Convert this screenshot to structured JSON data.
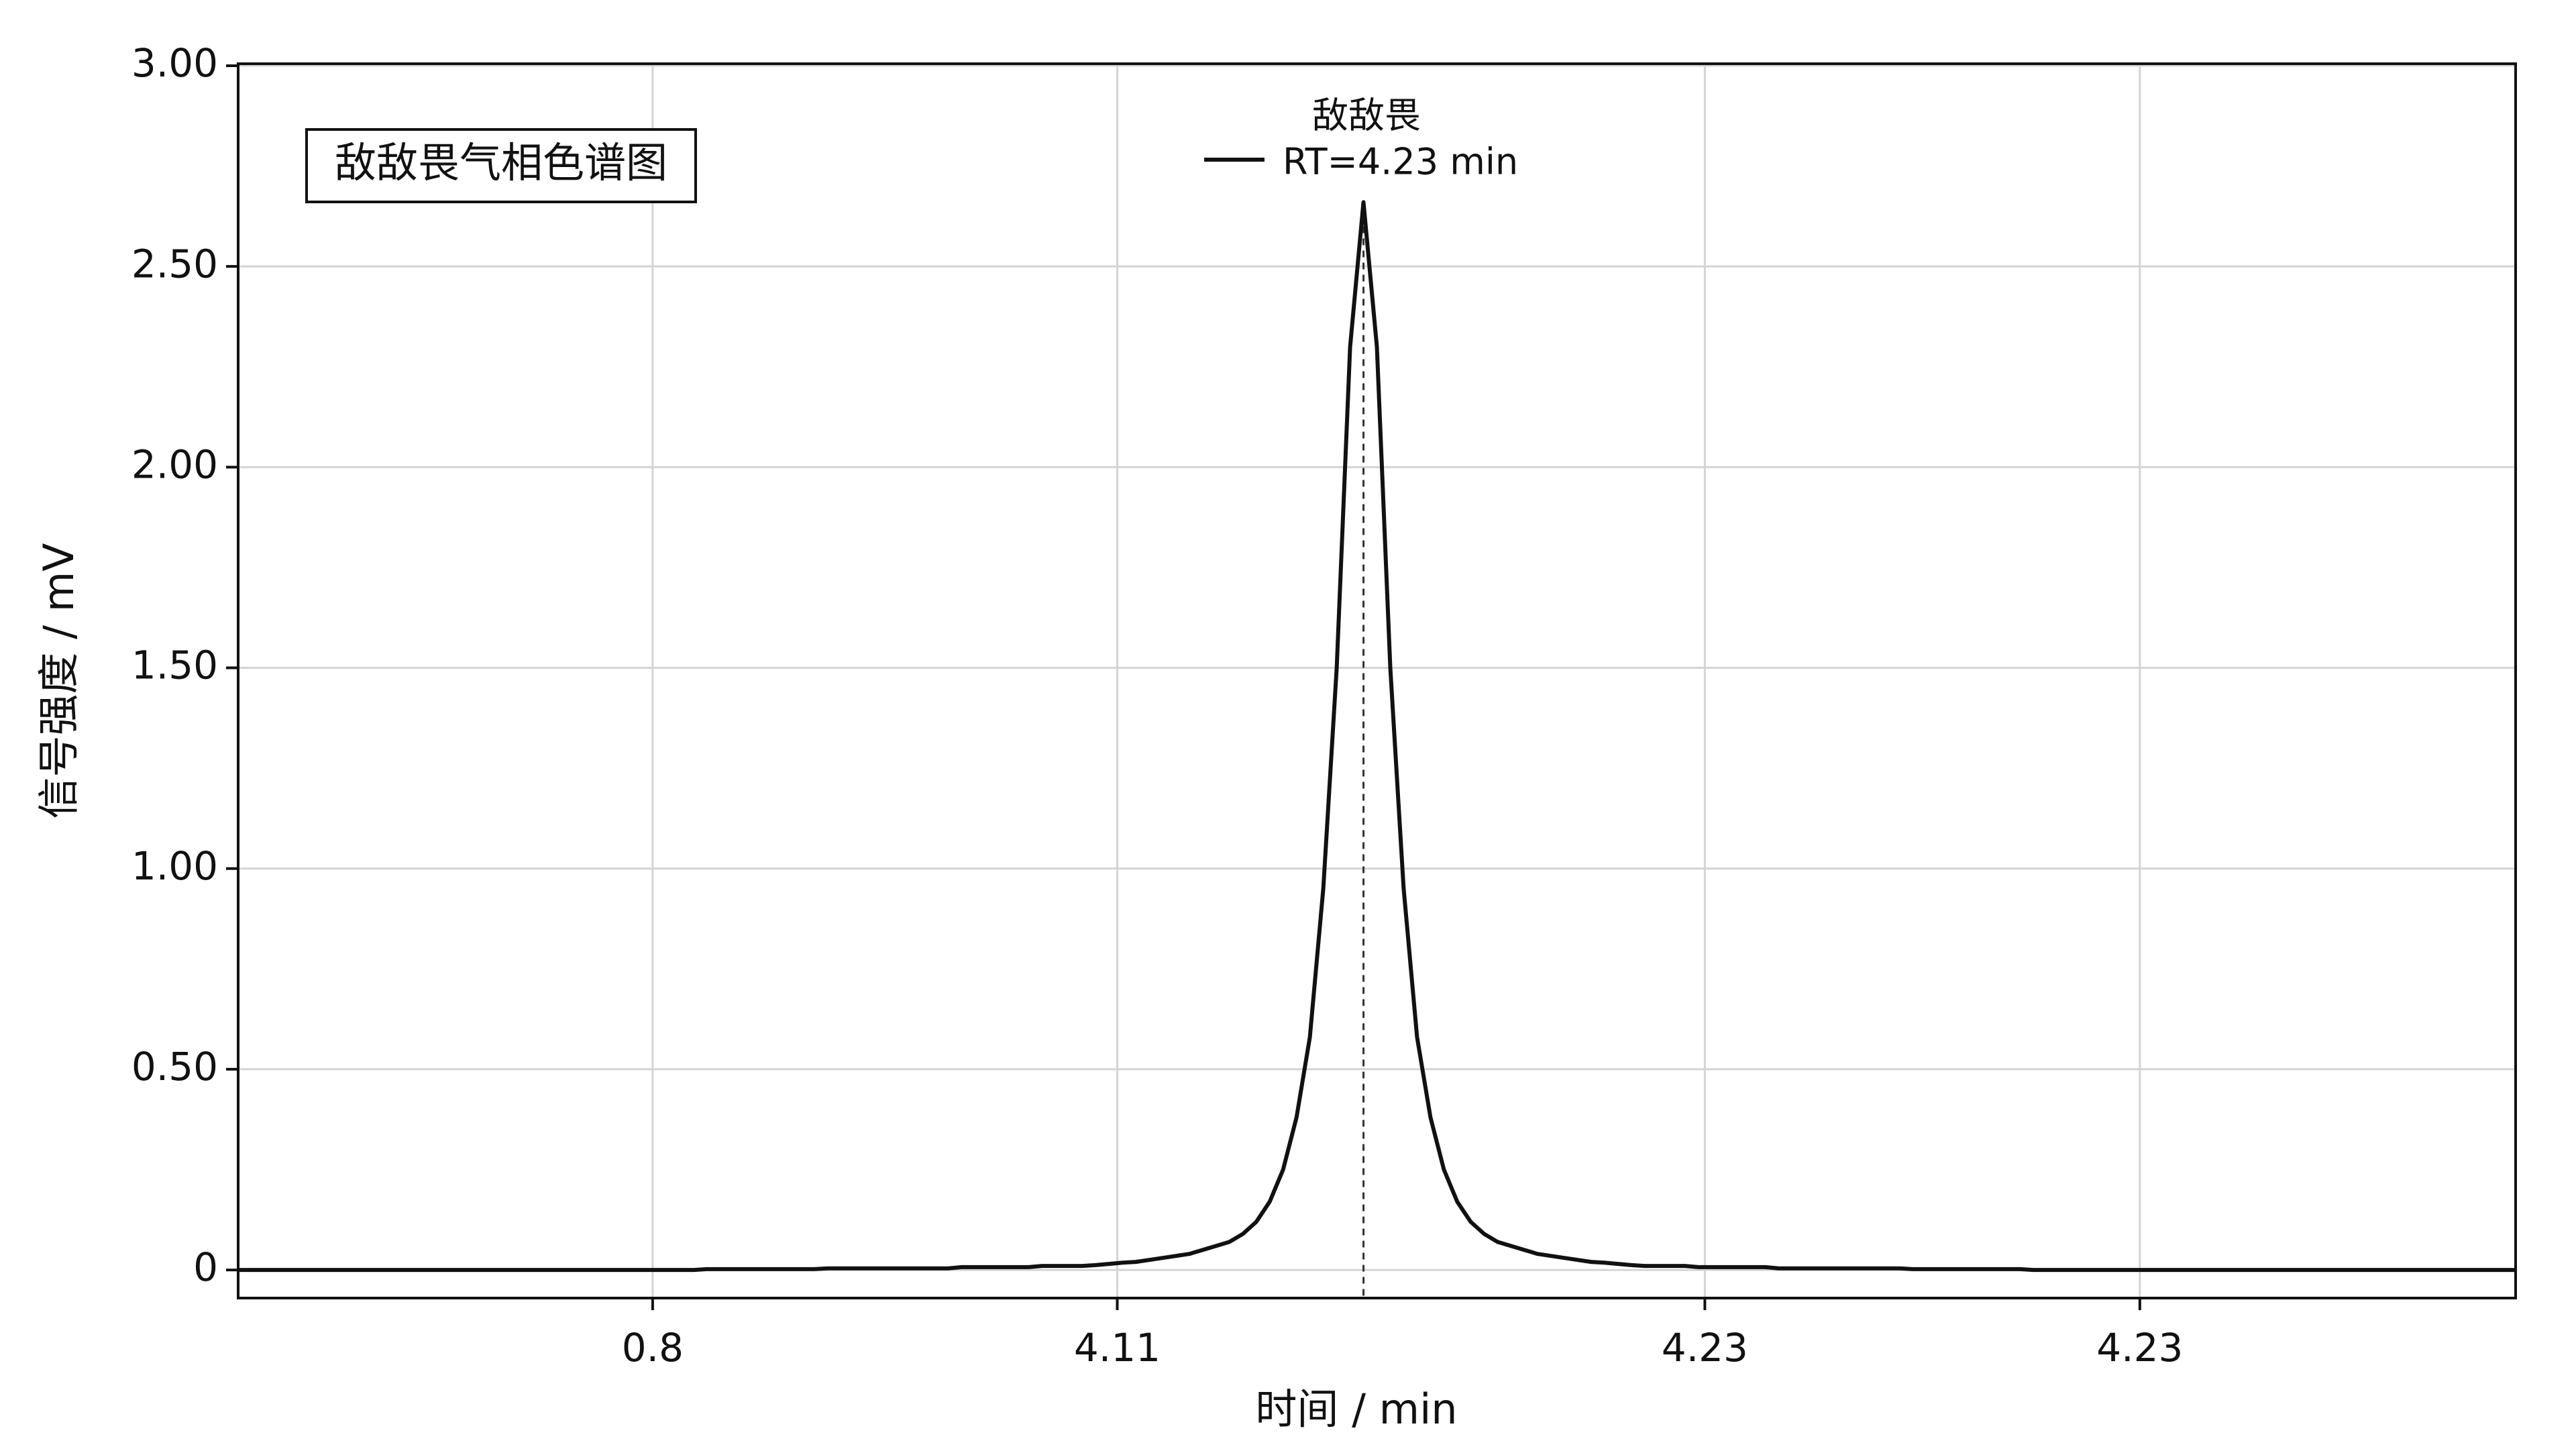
{
  "chart_data": {
    "type": "line",
    "title": "敌敌畏气相色谱图",
    "xlabel": "时间 / min",
    "ylabel": "信号强度 / mV",
    "legend_title": "敌敌畏",
    "legend": "top-center",
    "grid": true,
    "xtick_labels": [
      "0.8",
      "4.11",
      "4.23",
      "4.23"
    ],
    "ylim": [
      -0.07,
      3.0
    ],
    "yticks": [
      0,
      {
        "value": 0.5,
        "label": "0.50"
      },
      {
        "value": 1.0,
        "label": "1.00"
      },
      {
        "value": 1.5,
        "label": "1.50"
      },
      {
        "value": 2.0,
        "label": "2.00"
      },
      {
        "value": 2.5,
        "label": "2.50"
      },
      {
        "value": 3.0,
        "label": "3.00"
      }
    ],
    "series": [
      {
        "name": "RT=4.23 min",
        "color": "#111111",
        "values": [
          0,
          0,
          0,
          0,
          0,
          0,
          0,
          0,
          0,
          0,
          0,
          0,
          0,
          0,
          0,
          0,
          0,
          0,
          0,
          0,
          0,
          0,
          0,
          0,
          0,
          0,
          0,
          0,
          0,
          0,
          0,
          0,
          0,
          0,
          0,
          0.002,
          0.002,
          0.002,
          0.002,
          0.002,
          0.002,
          0.002,
          0.002,
          0.002,
          0.004,
          0.004,
          0.004,
          0.004,
          0.004,
          0.004,
          0.004,
          0.004,
          0.004,
          0.004,
          0.007,
          0.007,
          0.007,
          0.007,
          0.007,
          0.007,
          0.01,
          0.01,
          0.01,
          0.01,
          0.012,
          0.015,
          0.018,
          0.02,
          0.025,
          0.03,
          0.035,
          0.04,
          0.05,
          0.06,
          0.07,
          0.09,
          0.12,
          0.17,
          0.25,
          0.38,
          0.58,
          0.95,
          1.5,
          2.3,
          2.66,
          2.3,
          1.5,
          0.95,
          0.58,
          0.38,
          0.25,
          0.17,
          0.12,
          0.09,
          0.07,
          0.06,
          0.05,
          0.04,
          0.035,
          0.03,
          0.025,
          0.02,
          0.018,
          0.015,
          0.012,
          0.01,
          0.01,
          0.01,
          0.01,
          0.007,
          0.007,
          0.007,
          0.007,
          0.007,
          0.007,
          0.004,
          0.004,
          0.004,
          0.004,
          0.004,
          0.004,
          0.004,
          0.004,
          0.004,
          0.004,
          0.002,
          0.002,
          0.002,
          0.002,
          0.002,
          0.002,
          0.002,
          0.002,
          0.002,
          0,
          0,
          0,
          0,
          0,
          0,
          0,
          0,
          0,
          0,
          0,
          0,
          0,
          0,
          0,
          0,
          0,
          0,
          0,
          0,
          0,
          0,
          0,
          0,
          0,
          0,
          0,
          0,
          0,
          0,
          0,
          0,
          0,
          0,
          0,
          0,
          0
        ]
      }
    ]
  }
}
